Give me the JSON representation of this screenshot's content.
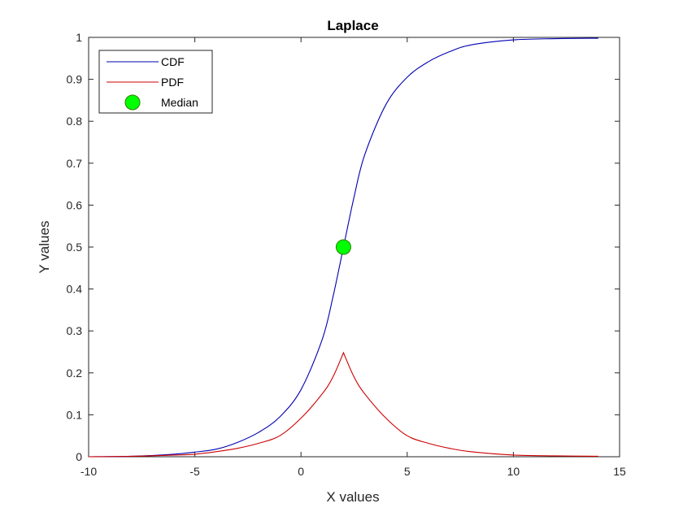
{
  "chart_data": {
    "type": "line",
    "title": "Laplace",
    "xlabel": "X values",
    "ylabel": "Y values",
    "xlim": [
      -10,
      15
    ],
    "ylim": [
      0,
      1
    ],
    "xticks": [
      -10,
      -5,
      0,
      5,
      10,
      15
    ],
    "yticks": [
      0,
      0.1,
      0.2,
      0.3,
      0.4,
      0.5,
      0.6,
      0.7,
      0.8,
      0.9,
      1
    ],
    "grid": false,
    "legend_position": "top-left",
    "series": [
      {
        "name": "CDF",
        "color": "#0000b3",
        "x": [
          -10,
          -8,
          -6,
          -5,
          -4,
          -3,
          -2,
          -1,
          0,
          1,
          1.5,
          2,
          2.5,
          3,
          4,
          5,
          6,
          7,
          8,
          10,
          12,
          14
        ],
        "values": [
          0.0,
          0.001,
          0.006,
          0.011,
          0.018,
          0.034,
          0.058,
          0.095,
          0.16,
          0.28,
          0.38,
          0.5,
          0.62,
          0.72,
          0.84,
          0.905,
          0.942,
          0.966,
          0.982,
          0.994,
          0.997,
          0.998
        ]
      },
      {
        "name": "PDF",
        "color": "#cc0000",
        "x": [
          -10,
          -8,
          -6,
          -5,
          -4,
          -3,
          -2,
          -1,
          0,
          1,
          1.5,
          2,
          2.5,
          3,
          4,
          5,
          6,
          7,
          8,
          10,
          12,
          14
        ],
        "values": [
          0.0,
          0.001,
          0.004,
          0.006,
          0.012,
          0.02,
          0.032,
          0.05,
          0.092,
          0.15,
          0.19,
          0.248,
          0.19,
          0.15,
          0.092,
          0.05,
          0.032,
          0.02,
          0.012,
          0.004,
          0.002,
          0.001
        ]
      }
    ],
    "markers": [
      {
        "name": "Median",
        "x": 2,
        "y": 0.5,
        "color": "#00ff00",
        "edge_color": "#2e7d00"
      }
    ]
  }
}
